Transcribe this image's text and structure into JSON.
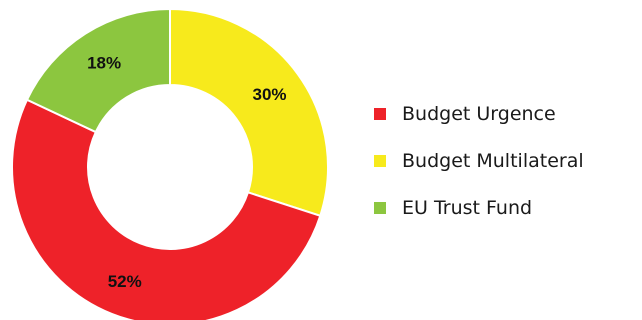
{
  "chart_data": {
    "type": "pie",
    "variant": "donut",
    "title": "",
    "legend_position": "right",
    "slices": [
      {
        "name": "Budget Urgence",
        "value": 52,
        "label": "52%",
        "color": "#ee2229"
      },
      {
        "name": "Budget Multilateral",
        "value": 30,
        "label": "30%",
        "color": "#f7ea1c"
      },
      {
        "name": "EU Trust Fund",
        "value": 18,
        "label": "18%",
        "color": "#8cc63f"
      }
    ]
  }
}
